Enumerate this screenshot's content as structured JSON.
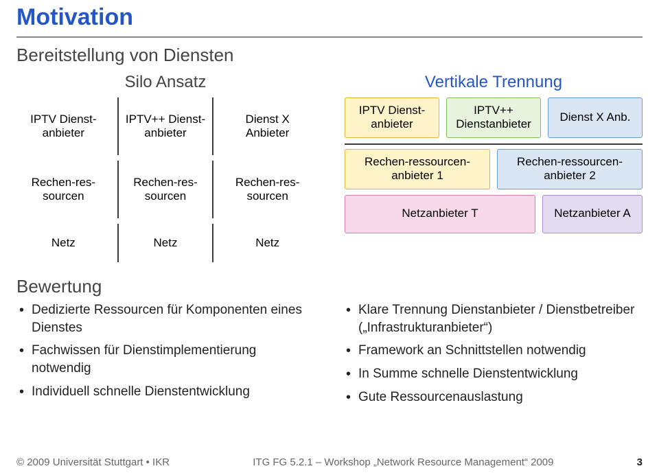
{
  "colors": {
    "title": "#2457c5",
    "rule": "#888888",
    "sepv": "#3b3b3b",
    "yellow_fill": "#fff3c9",
    "yellow_border": "#e7b63a",
    "green_fill": "#e7f3dc",
    "green_border": "#7fbf5a",
    "blue_fill": "#dae6f3",
    "blue_border": "#6a9bd8",
    "pink_fill": "#f7d9ea",
    "pink_border": "#d67fb2",
    "purple_fill": "#e3dbef",
    "purple_border": "#a88fcf"
  },
  "title": "Motivation",
  "subtitle": "Bereitstellung von Diensten",
  "silo": {
    "heading": "Silo Ansatz",
    "cols": [
      {
        "top": "IPTV Dienst-anbieter",
        "mid": "Rechen-res-sourcen",
        "bot": "Netz"
      },
      {
        "top": "IPTV++ Dienst-anbieter",
        "mid": "Rechen-res-sourcen",
        "bot": "Netz"
      },
      {
        "top": "Dienst X Anbieter",
        "mid": "Rechen-res-sourcen",
        "bot": "Netz"
      }
    ]
  },
  "vertikal": {
    "heading": "Vertikale Trennung",
    "row1": [
      {
        "label": "IPTV Dienst-anbieter",
        "fill": "yellow"
      },
      {
        "label": "IPTV++ Dienstanbieter",
        "fill": "green"
      },
      {
        "label": "Dienst X Anb.",
        "fill": "blue"
      }
    ],
    "row2": [
      {
        "label": "Rechen-ressourcen-anbieter 1",
        "fill": "yellow",
        "flex": 1
      },
      {
        "label": "Rechen-ressourcen-anbieter 2",
        "fill": "blue",
        "flex": 1
      }
    ],
    "row3": [
      {
        "label": "Netzanbieter T",
        "fill": "pink",
        "flex": 2
      },
      {
        "label": "Netzanbieter A",
        "fill": "purple",
        "flex": 1
      }
    ]
  },
  "bewertung": {
    "heading": "Bewertung",
    "left": [
      "Dedizierte Ressourcen für Komponenten eines Dienstes",
      "Fachwissen für Dienstimplementierung notwendig",
      "Individuell schnelle Dienstentwicklung"
    ],
    "right": [
      "Klare Trennung Dienstanbieter / Dienstbetreiber („Infrastrukturanbieter“)",
      "Framework an Schnittstellen notwendig",
      "In Summe schnelle Dienstentwicklung",
      "Gute Ressourcenauslastung"
    ]
  },
  "footer": {
    "left": "© 2009 Universität Stuttgart • IKR",
    "center": "ITG FG 5.2.1 – Workshop „Network Resource Management“ 2009",
    "pagenum": "3"
  }
}
